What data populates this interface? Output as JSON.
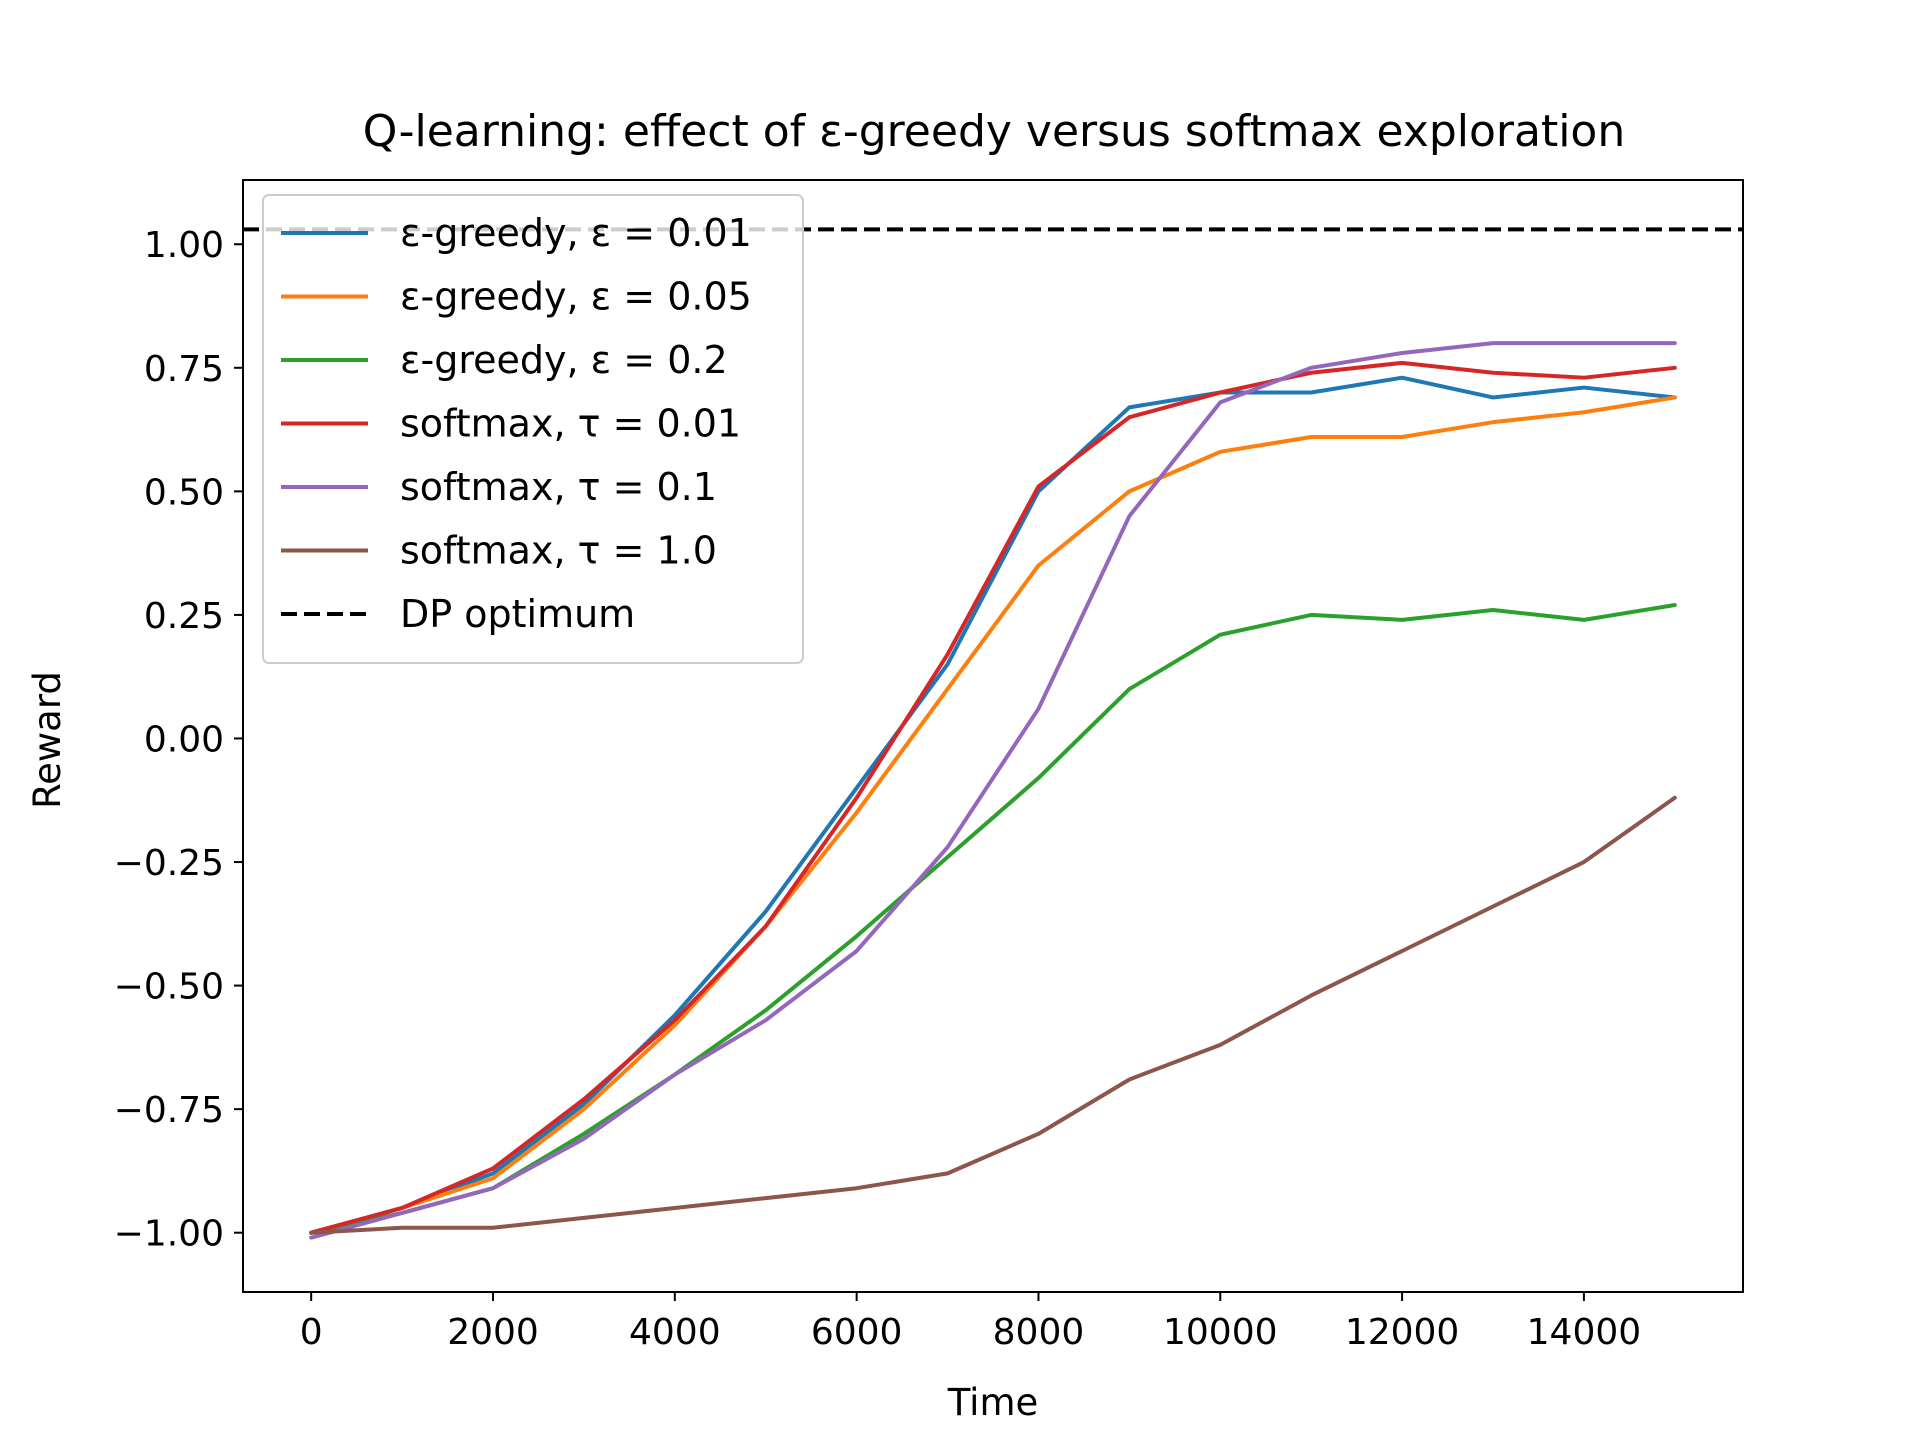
{
  "chart_data": {
    "type": "line",
    "title": "Q-learning: effect of ε-greedy versus softmax exploration",
    "xlabel": "Time",
    "ylabel": "Reward",
    "xlim": [
      -750,
      15750
    ],
    "ylim": [
      -1.12,
      1.13
    ],
    "xticks": [
      0,
      2000,
      4000,
      6000,
      8000,
      10000,
      12000,
      14000
    ],
    "xtick_labels": [
      "0",
      "2000",
      "4000",
      "6000",
      "8000",
      "10000",
      "12000",
      "14000"
    ],
    "yticks": [
      1.0,
      0.75,
      0.5,
      0.25,
      0.0,
      -0.25,
      -0.5,
      -0.75,
      -1.0
    ],
    "ytick_labels": [
      "1.00",
      "0.75",
      "0.50",
      "0.25",
      "0.00",
      "−0.25",
      "−0.50",
      "−0.75",
      "−1.00"
    ],
    "grid": false,
    "legend_position": "upper-left",
    "x": [
      0,
      1000,
      2000,
      3000,
      4000,
      5000,
      6000,
      7000,
      8000,
      9000,
      10000,
      11000,
      12000,
      13000,
      14000,
      15000
    ],
    "series": [
      {
        "name": "ε-greedy, ε = 0.01",
        "color": "#1f77b4",
        "dash": "solid",
        "values": [
          -1.0,
          -0.95,
          -0.88,
          -0.74,
          -0.56,
          -0.35,
          -0.1,
          0.15,
          0.5,
          0.67,
          0.7,
          0.7,
          0.73,
          0.69,
          0.71,
          0.69
        ]
      },
      {
        "name": "ε-greedy, ε = 0.05",
        "color": "#ff7f0e",
        "dash": "solid",
        "values": [
          -1.0,
          -0.95,
          -0.89,
          -0.75,
          -0.58,
          -0.38,
          -0.15,
          0.1,
          0.35,
          0.5,
          0.58,
          0.61,
          0.61,
          0.64,
          0.66,
          0.69
        ]
      },
      {
        "name": "ε-greedy, ε = 0.2",
        "color": "#2ca02c",
        "dash": "solid",
        "values": [
          -1.0,
          -0.96,
          -0.91,
          -0.8,
          -0.68,
          -0.55,
          -0.4,
          -0.24,
          -0.08,
          0.1,
          0.21,
          0.25,
          0.24,
          0.26,
          0.24,
          0.27
        ]
      },
      {
        "name": "softmax, τ = 0.01",
        "color": "#d62728",
        "dash": "solid",
        "values": [
          -1.0,
          -0.95,
          -0.87,
          -0.73,
          -0.57,
          -0.38,
          -0.12,
          0.17,
          0.51,
          0.65,
          0.7,
          0.74,
          0.76,
          0.74,
          0.73,
          0.75
        ]
      },
      {
        "name": "softmax, τ = 0.1",
        "color": "#9467bd",
        "dash": "solid",
        "values": [
          -1.01,
          -0.96,
          -0.91,
          -0.81,
          -0.68,
          -0.57,
          -0.43,
          -0.22,
          0.06,
          0.45,
          0.68,
          0.75,
          0.78,
          0.8,
          0.8,
          0.8
        ]
      },
      {
        "name": "softmax, τ = 1.0",
        "color": "#8c564b",
        "dash": "solid",
        "values": [
          -1.0,
          -0.99,
          -0.99,
          -0.97,
          -0.95,
          -0.93,
          -0.91,
          -0.88,
          -0.8,
          -0.69,
          -0.62,
          -0.52,
          -0.43,
          -0.34,
          -0.25,
          -0.12
        ]
      }
    ],
    "reference_line": {
      "name": "DP optimum",
      "value": 1.03,
      "color": "#000000",
      "dash": "dashed"
    }
  }
}
